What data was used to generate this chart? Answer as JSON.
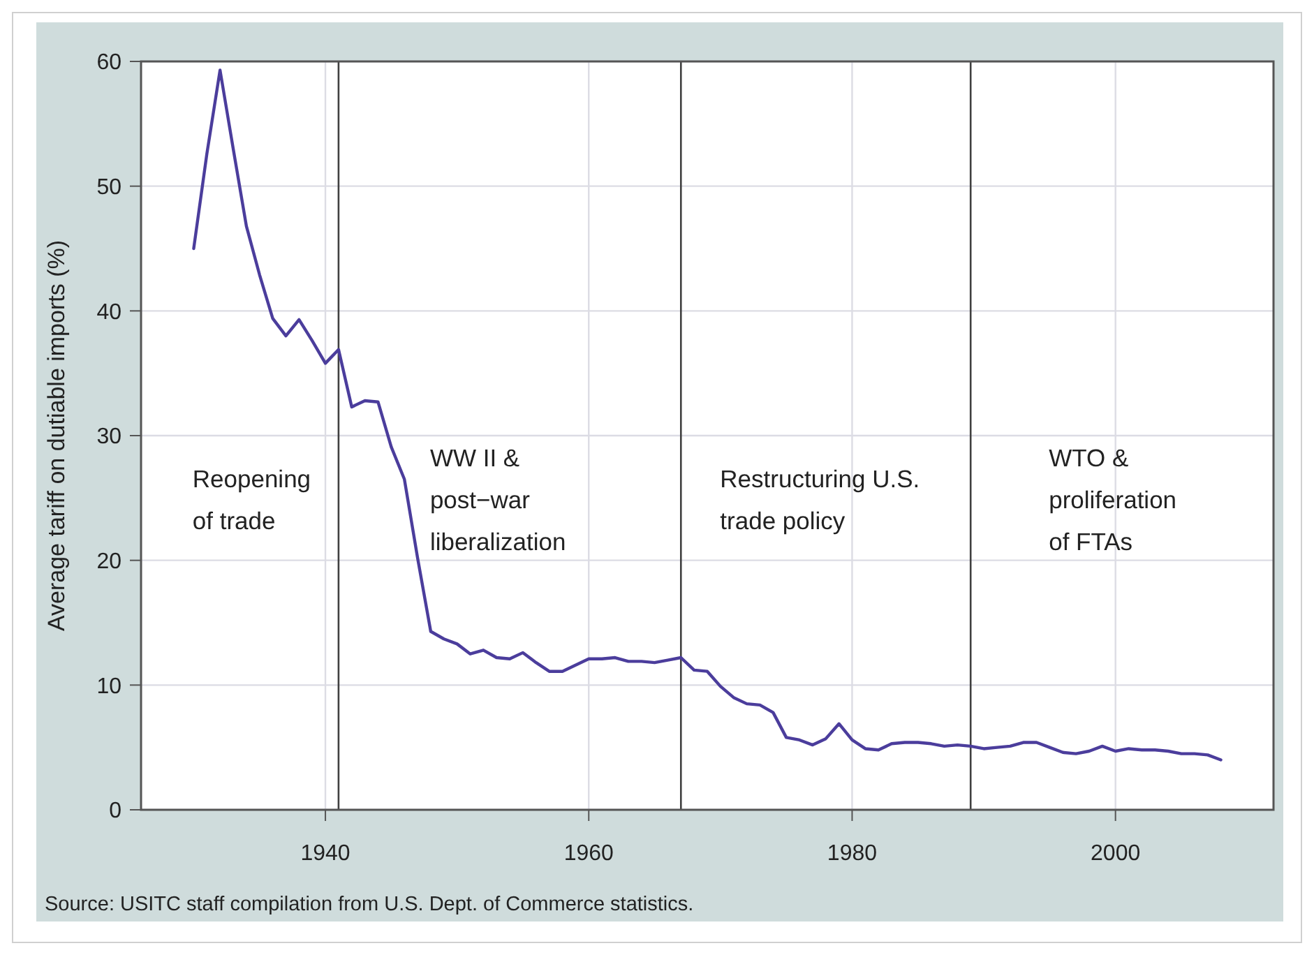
{
  "chart_data": {
    "type": "line",
    "ylabel": "Average tariff on dutiable imports (%)",
    "x": [
      1930,
      1931,
      1932,
      1933,
      1934,
      1935,
      1936,
      1937,
      1938,
      1939,
      1940,
      1941,
      1942,
      1943,
      1944,
      1945,
      1946,
      1947,
      1948,
      1949,
      1950,
      1951,
      1952,
      1953,
      1954,
      1955,
      1956,
      1957,
      1958,
      1959,
      1960,
      1961,
      1962,
      1963,
      1964,
      1965,
      1966,
      1967,
      1968,
      1969,
      1970,
      1971,
      1972,
      1973,
      1974,
      1975,
      1976,
      1977,
      1978,
      1979,
      1980,
      1981,
      1982,
      1983,
      1984,
      1985,
      1986,
      1987,
      1988,
      1989,
      1990,
      1991,
      1992,
      1993,
      1994,
      1995,
      1996,
      1997,
      1998,
      1999,
      2000,
      2001,
      2002,
      2003,
      2004,
      2005,
      2006,
      2007,
      2008
    ],
    "series": [
      {
        "color": "#4b3d9c",
        "values": [
          45.0,
          52.6,
          59.3,
          53.0,
          46.8,
          42.9,
          39.4,
          38.0,
          39.3,
          37.6,
          35.8,
          36.9,
          32.3,
          32.8,
          32.7,
          29.1,
          26.5,
          20.2,
          14.3,
          13.7,
          13.3,
          12.5,
          12.8,
          12.2,
          12.1,
          12.6,
          11.8,
          11.1,
          11.1,
          11.6,
          12.1,
          12.1,
          12.2,
          11.9,
          11.9,
          11.8,
          12.0,
          12.2,
          11.2,
          11.1,
          9.9,
          9.0,
          8.5,
          8.4,
          7.8,
          5.8,
          5.6,
          5.2,
          5.7,
          6.9,
          5.6,
          4.9,
          4.8,
          5.3,
          5.4,
          5.4,
          5.3,
          5.1,
          5.2,
          5.1,
          4.9,
          5.0,
          5.1,
          5.4,
          5.4,
          5.0,
          4.6,
          4.5,
          4.7,
          5.1,
          4.7,
          4.9,
          4.8,
          4.8,
          4.7,
          4.5,
          4.5,
          4.4,
          4.0
        ]
      }
    ],
    "xlim": [
      1926,
      2012
    ],
    "xticks": [
      1940,
      1960,
      1980,
      2000
    ],
    "ylim": [
      0,
      60
    ],
    "yticks": [
      0,
      10,
      20,
      30,
      40,
      50,
      60
    ],
    "grid": true,
    "marker": "none",
    "line_style": "solid",
    "ref_lines": [
      {
        "axis": "x",
        "value": 1941,
        "color": "#404040"
      },
      {
        "axis": "x",
        "value": 1967,
        "color": "#404040"
      },
      {
        "axis": "x",
        "value": 1989,
        "color": "#404040"
      }
    ],
    "annotations": [
      "Reopening\nof trade",
      "WW II &\npost−war\nliberalization",
      "Restructuring U.S.\ntrade policy",
      "WTO &\nproliferation\nof FTAs",
      "Source: USITC staff compilation from U.S. Dept. of Commerce statistics."
    ]
  }
}
